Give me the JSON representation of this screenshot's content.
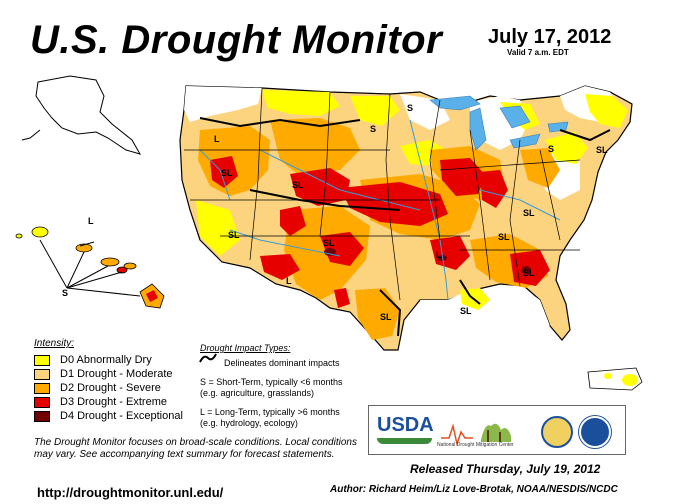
{
  "header": {
    "title": "U.S. Drought Monitor",
    "date": "July 17, 2012",
    "valid": "Valid 7 a.m. EDT"
  },
  "legend": {
    "title": "Intensity:",
    "items": [
      {
        "label": "D0 Abnormally Dry",
        "color": "#ffff00"
      },
      {
        "label": "D1 Drought - Moderate",
        "color": "#fcd37f"
      },
      {
        "label": "D2 Drought - Severe",
        "color": "#ffaa00"
      },
      {
        "label": "D3 Drought - Extreme",
        "color": "#e60000"
      },
      {
        "label": "D4 Drought - Exceptional",
        "color": "#730000"
      }
    ]
  },
  "impact": {
    "title": "Drought Impact Types:",
    "delineates": "Delineates dominant impacts",
    "short_term": "S = Short-Term, typically <6 months",
    "short_term_eg": "(e.g. agriculture, grasslands)",
    "long_term": "L = Long-Term, typically >6 months",
    "long_term_eg": "(e.g. hydrology, ecology)"
  },
  "focus_note": "The Drought Monitor focuses on broad-scale conditions. Local conditions may vary. See accompanying text summary for forecast statements.",
  "url": "http://droughtmonitor.unl.edu/",
  "released": "Released Thursday, July 19, 2012",
  "author": "Author: Richard Heim/Liz Love-Brotak, NOAA/NESDIS/NCDC",
  "logos": {
    "usda": "USDA",
    "ndmc": "National Drought Mitigation Center"
  },
  "map_labels": [
    "S",
    "S",
    "L",
    "SL",
    "SL",
    "SL",
    "SL",
    "L",
    "SL",
    "SL",
    "SL",
    "SL",
    "SL",
    "L",
    "S",
    "SL",
    "S",
    "L"
  ],
  "colors": {
    "water": "#3d9bd6",
    "lake": "#5ab0e8",
    "border": "#000000"
  }
}
